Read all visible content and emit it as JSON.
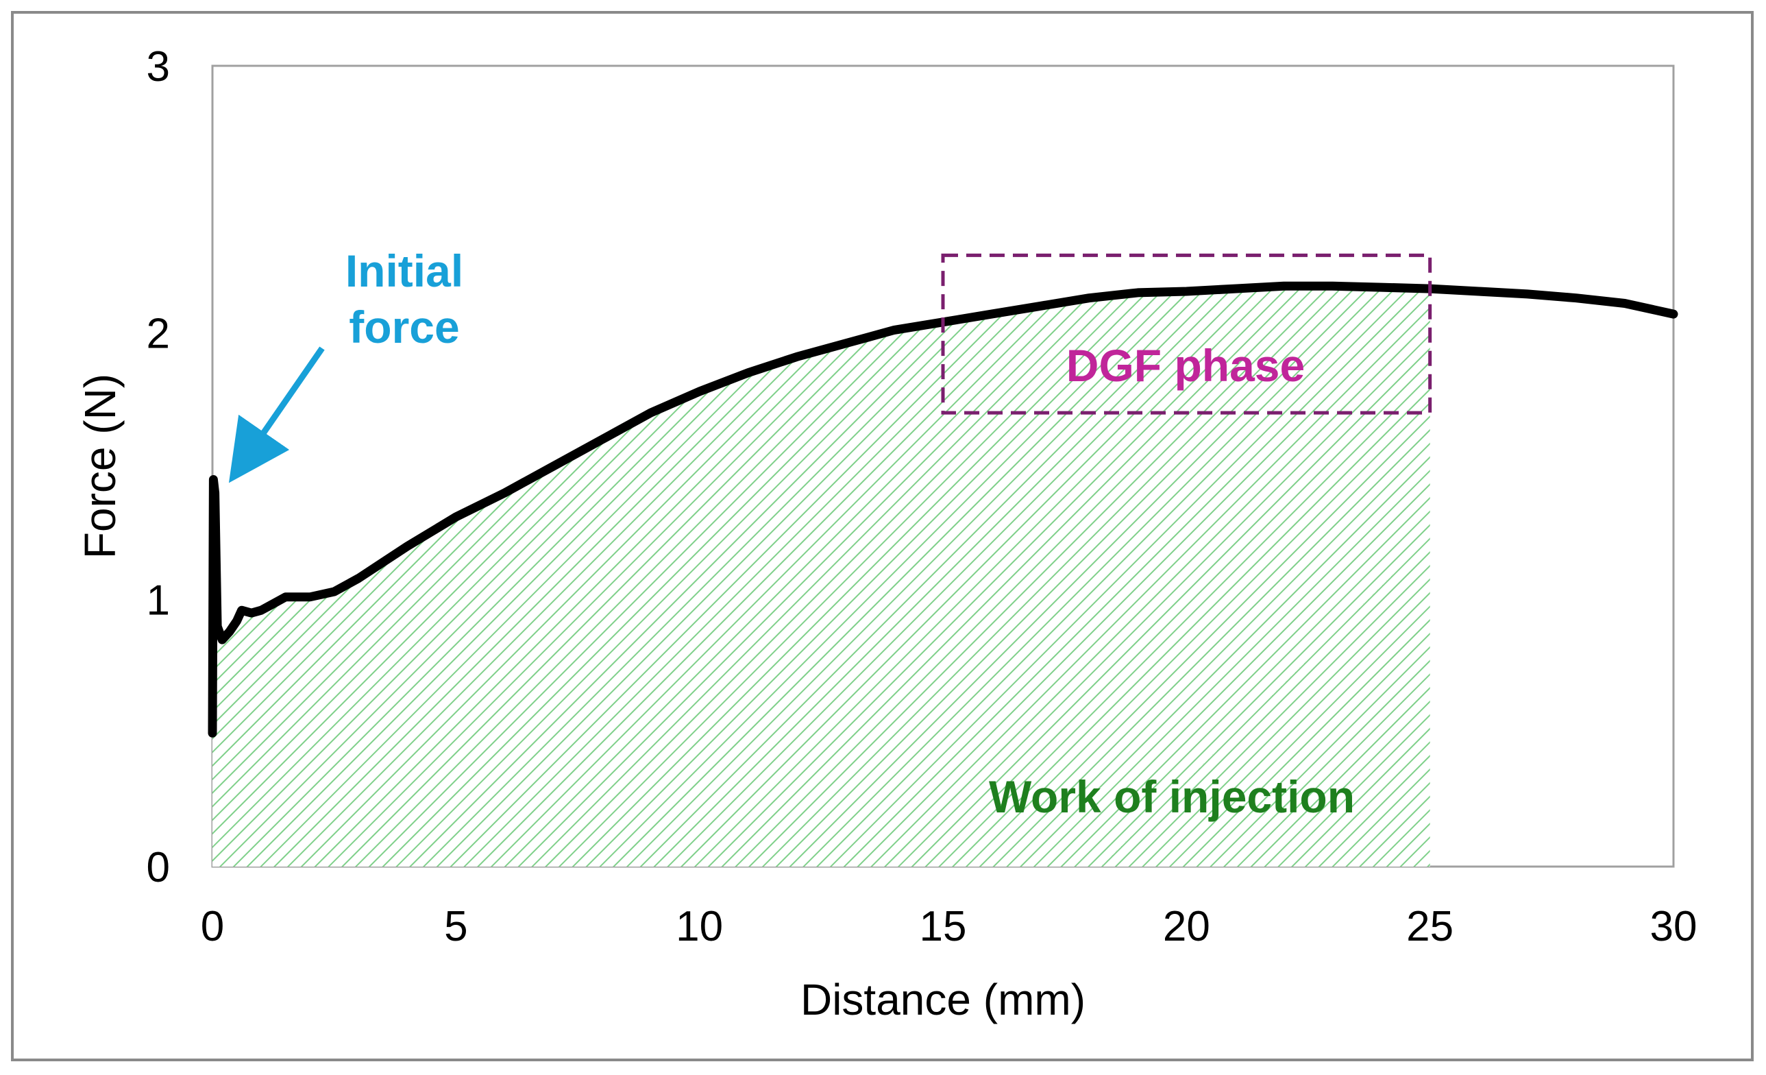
{
  "chart_data": {
    "type": "line",
    "title": "",
    "xlabel": "Distance (mm)",
    "ylabel": "Force (N)",
    "xlim": [
      0,
      30
    ],
    "ylim": [
      0,
      3
    ],
    "x_ticks": [
      "0",
      "5",
      "10",
      "15",
      "20",
      "25",
      "30"
    ],
    "y_ticks": [
      "0",
      "1",
      "2",
      "3"
    ],
    "grid": false,
    "series": [
      {
        "name": "Force",
        "color": "#000000",
        "x": [
          0,
          0.02,
          0.05,
          0.1,
          0.2,
          0.35,
          0.5,
          0.6,
          0.8,
          1.0,
          1.2,
          1.5,
          2.0,
          2.5,
          3,
          3.5,
          4,
          5,
          6,
          7,
          8,
          9,
          10,
          11,
          12,
          13,
          14,
          15,
          16,
          17,
          18,
          19,
          20,
          21,
          22,
          23,
          24,
          25,
          26,
          27,
          28,
          29,
          30
        ],
        "y": [
          0.5,
          1.45,
          1.4,
          0.9,
          0.85,
          0.88,
          0.92,
          0.96,
          0.95,
          0.96,
          0.98,
          1.01,
          1.01,
          1.03,
          1.08,
          1.14,
          1.2,
          1.31,
          1.4,
          1.5,
          1.6,
          1.7,
          1.78,
          1.85,
          1.91,
          1.96,
          2.01,
          2.04,
          2.07,
          2.1,
          2.13,
          2.15,
          2.155,
          2.165,
          2.175,
          2.175,
          2.17,
          2.165,
          2.155,
          2.145,
          2.13,
          2.11,
          2.07
        ]
      }
    ],
    "shaded_region": {
      "label": "Work of injection",
      "x_start": 0,
      "x_end": 25,
      "color": "#2e9e3a"
    },
    "annotations": [
      {
        "id": "initial_force",
        "lines": [
          "Initial",
          "force"
        ],
        "color": "#18a0d8",
        "arrow_to": [
          0.3,
          1.52
        ]
      },
      {
        "id": "dgf_phase",
        "text": "DGF phase",
        "color": "#c0259a",
        "box_color": "#7a1f6e",
        "box_x": [
          15,
          25
        ],
        "box_y": [
          1.7,
          2.29
        ]
      },
      {
        "id": "work_of_injection",
        "text": "Work of injection",
        "color": "#1e7f1e"
      }
    ]
  }
}
